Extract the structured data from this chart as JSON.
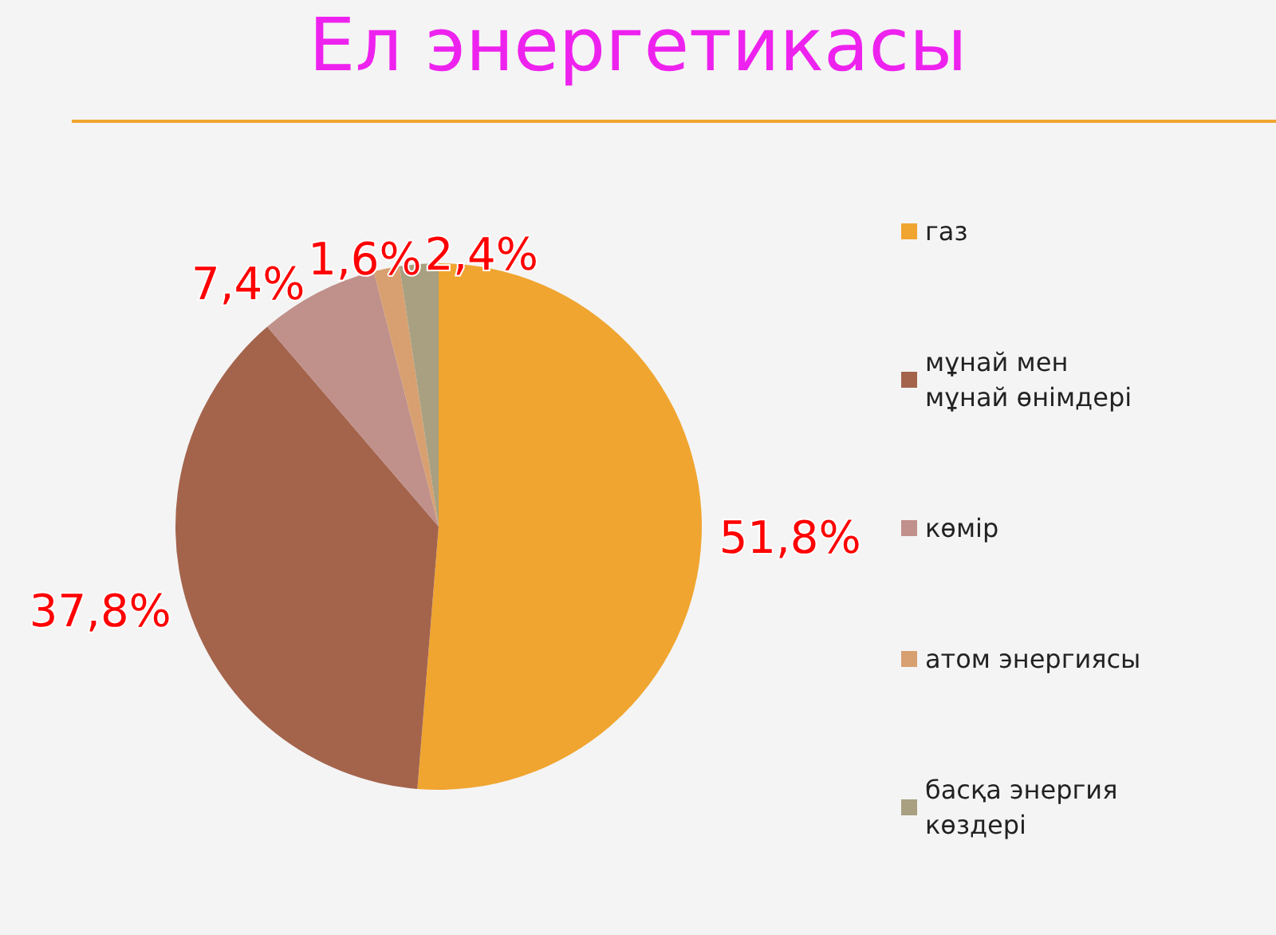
{
  "chart_data": {
    "type": "pie",
    "title": "Ел энергетикасы",
    "categories": [
      "газ",
      "мұнай мен мұнай өнімдері",
      "көмір",
      "атом энергиясы",
      "басқа энергия көздері"
    ],
    "values": [
      51.8,
      37.8,
      7.4,
      1.6,
      2.4
    ],
    "colors": [
      "#f0a530",
      "#a4644c",
      "#c0908a",
      "#d8a070",
      "#a8a080"
    ],
    "value_labels": [
      "51,8%",
      "37,8%",
      "7,4%",
      "1,6%",
      "2,4%"
    ],
    "legend": "right"
  }
}
